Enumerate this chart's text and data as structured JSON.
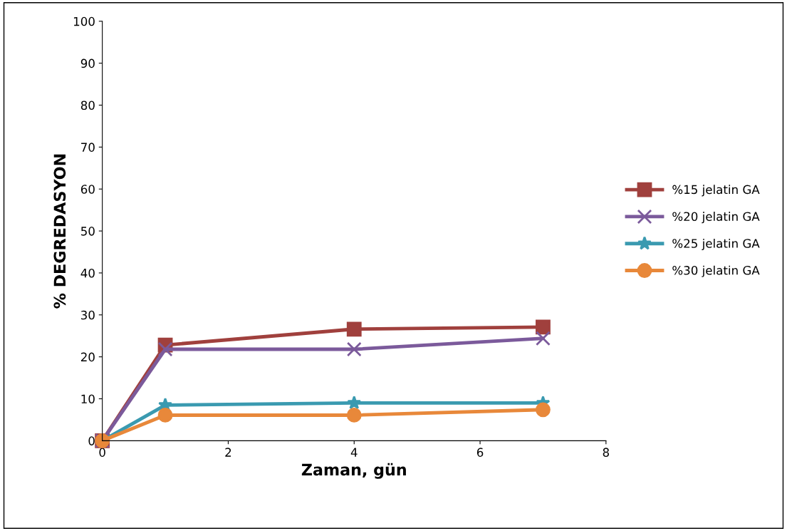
{
  "chart_data": {
    "type": "line",
    "xlabel": "Zaman, gün",
    "ylabel": "% DEGREDASYON",
    "xlim": [
      0,
      8
    ],
    "xticks": [
      0,
      2,
      4,
      6,
      8
    ],
    "ylim": [
      0,
      100
    ],
    "yticks": [
      0,
      10,
      20,
      30,
      40,
      50,
      60,
      70,
      80,
      90,
      100
    ],
    "grid": false,
    "legend": "right",
    "series": [
      {
        "name": "%15 jelatin GA",
        "color": "#a0403d",
        "marker": "square",
        "x": [
          0,
          1,
          4,
          7
        ],
        "values": [
          0,
          22.8,
          26.6,
          27.1
        ]
      },
      {
        "name": "%20 jelatin GA",
        "color": "#7b5a9b",
        "marker": "cross",
        "x": [
          0,
          1,
          4,
          7
        ],
        "values": [
          0,
          21.8,
          21.8,
          24.4
        ]
      },
      {
        "name": "%25 jelatin GA",
        "color": "#3a9ab0",
        "marker": "star",
        "x": [
          0,
          1,
          4,
          7
        ],
        "values": [
          0,
          8.5,
          9.0,
          9.0
        ]
      },
      {
        "name": "%30 jelatin GA",
        "color": "#e8883a",
        "marker": "circle",
        "x": [
          0,
          1,
          4,
          7
        ],
        "values": [
          0,
          6.1,
          6.1,
          7.4
        ]
      }
    ]
  }
}
